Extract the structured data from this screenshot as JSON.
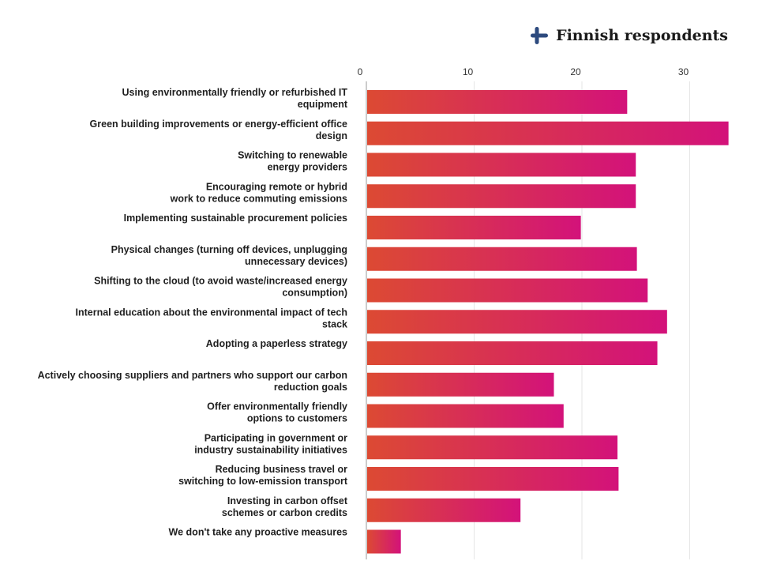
{
  "legend": {
    "label": "Finnish respondents",
    "icon": "finland-flag-icon",
    "colors": {
      "flag": "#2d4a7e"
    }
  },
  "colors": {
    "bar_start": "#dc4a33",
    "bar_end": "#d3127a",
    "grid": "#e6e6e6",
    "axis": "#999999"
  },
  "chart_data": {
    "type": "bar",
    "orientation": "horizontal",
    "title": "",
    "xlabel": "",
    "ylabel": "",
    "xlim": [
      0,
      34
    ],
    "ticks": [
      0,
      10,
      20,
      30
    ],
    "grid": true,
    "categories": [
      [
        "Using environmentally friendly or refurbished IT",
        "equipment"
      ],
      [
        "Green building improvements or energy-efficient office",
        "design"
      ],
      [
        "Switching to renewable",
        "energy providers"
      ],
      [
        "Encouraging remote or hybrid",
        "work to reduce commuting emissions"
      ],
      [
        "Implementing sustainable procurement policies"
      ],
      [
        "Physical changes (turning off devices, unplugging",
        "unnecessary devices)"
      ],
      [
        "Shifting to the cloud (to avoid waste/increased energy",
        "consumption)"
      ],
      [
        "Internal education about the environmental impact of tech",
        "stack"
      ],
      [
        "Adopting a paperless strategy"
      ],
      [
        "Actively choosing suppliers and partners who support our carbon",
        "reduction goals"
      ],
      [
        "Offer environmentally friendly",
        "options to customers"
      ],
      [
        "Participating in government or",
        "industry sustainability initiatives"
      ],
      [
        "Reducing business travel or",
        "switching to low-emission transport"
      ],
      [
        "Investing in carbon offset",
        "schemes or carbon credits"
      ],
      [
        "We don't take any proactive measures"
      ]
    ],
    "series": [
      {
        "values": [
          24.2,
          33.6,
          25.0,
          25.0,
          19.9,
          25.1,
          26.1,
          27.9,
          27.0,
          17.4,
          18.3,
          23.3,
          23.4,
          14.3,
          3.2
        ]
      }
    ]
  }
}
